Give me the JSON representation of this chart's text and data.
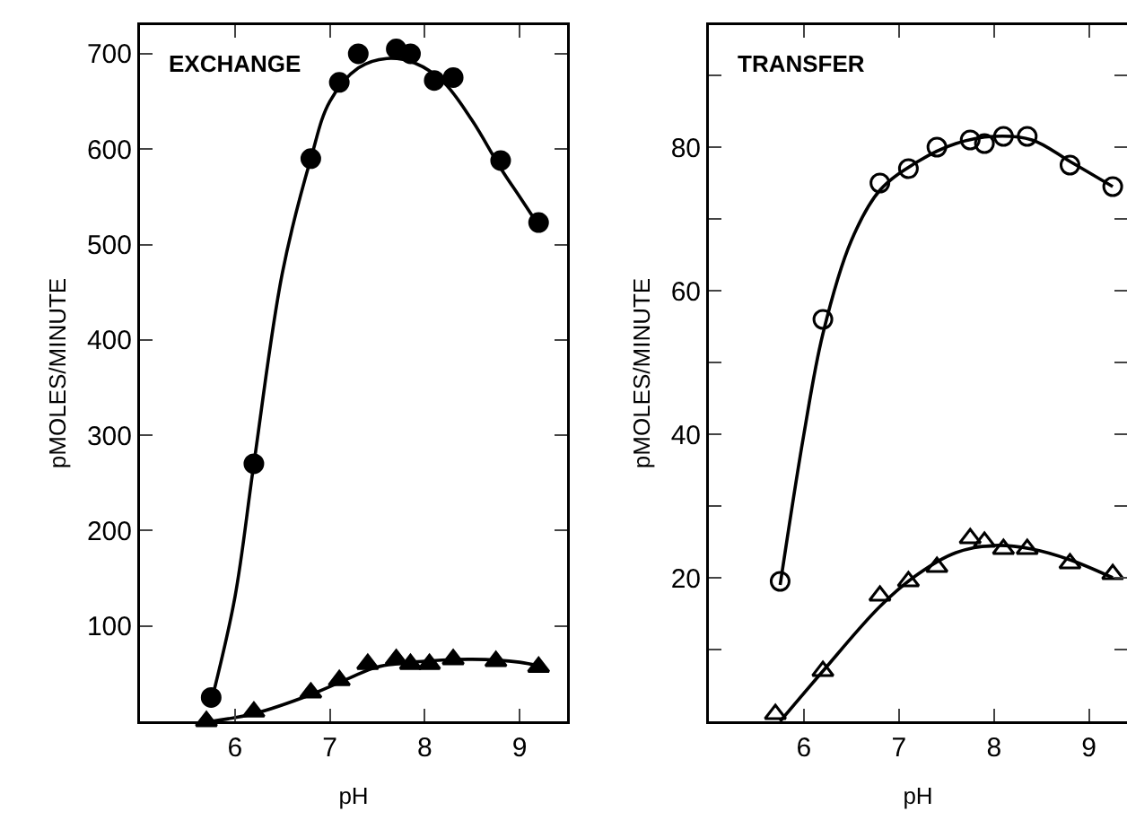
{
  "chart_data": [
    {
      "type": "scatter",
      "title": "EXCHANGE",
      "xlabel": "pH",
      "ylabel": "pMOLES/MINUTE",
      "xlim": [
        5,
        9.5
      ],
      "ylim": [
        0,
        730
      ],
      "xticks": [
        6,
        7,
        8,
        9
      ],
      "yticks": [
        100,
        200,
        300,
        400,
        500,
        600,
        700
      ],
      "series": [
        {
          "marker": "circle",
          "color": "#000000",
          "x": [
            5.75,
            6.2,
            6.8,
            7.1,
            7.3,
            7.7,
            7.85,
            8.1,
            8.3,
            8.8,
            9.2
          ],
          "values": [
            25,
            270,
            590,
            670,
            700,
            705,
            700,
            672,
            675,
            588,
            523
          ]
        },
        {
          "marker": "triangle",
          "color": "#000000",
          "x": [
            5.7,
            6.2,
            6.8,
            7.1,
            7.4,
            7.7,
            7.85,
            8.05,
            8.3,
            8.75,
            9.2
          ],
          "values": [
            0,
            10,
            30,
            43,
            60,
            65,
            60,
            60,
            65,
            63,
            57
          ]
        },
        {
          "type": "line",
          "marker": "none",
          "color": "#000000",
          "x": [
            5.75,
            6.0,
            6.2,
            6.5,
            6.8,
            7.0,
            7.3,
            7.6,
            7.9,
            8.2,
            8.5,
            8.8,
            9.0,
            9.2
          ],
          "values": [
            20,
            130,
            270,
            470,
            590,
            650,
            685,
            695,
            690,
            670,
            630,
            580,
            550,
            520
          ]
        },
        {
          "type": "line",
          "marker": "none",
          "color": "#000000",
          "x": [
            5.75,
            6.2,
            6.8,
            7.2,
            7.5,
            8.0,
            8.5,
            9.0,
            9.2
          ],
          "values": [
            0,
            8,
            28,
            45,
            57,
            63,
            65,
            62,
            58
          ]
        }
      ]
    },
    {
      "type": "scatter",
      "title": "TRANSFER",
      "xlabel": "pH",
      "ylabel": "pMOLES/MINUTE",
      "xlim": [
        5,
        9.4
      ],
      "ylim": [
        0,
        97
      ],
      "xticks": [
        6,
        7,
        8,
        9
      ],
      "yticks": [
        {
          "value": 10,
          "label": null
        },
        20,
        {
          "value": 30,
          "label": null
        },
        40,
        {
          "value": 50,
          "label": null
        },
        60,
        {
          "value": 70,
          "label": null
        },
        80,
        {
          "value": 90,
          "label": null
        }
      ],
      "series": [
        {
          "marker": "circle-open",
          "color": "#000000",
          "x": [
            5.75,
            6.2,
            6.8,
            7.1,
            7.4,
            7.75,
            7.9,
            8.1,
            8.35,
            8.8,
            9.25
          ],
          "values": [
            19.5,
            56,
            75,
            77,
            80,
            81,
            80.5,
            81.5,
            81.5,
            77.5,
            74.5
          ]
        },
        {
          "marker": "triangle-open",
          "color": "#000000",
          "x": [
            5.7,
            6.2,
            6.8,
            7.1,
            7.4,
            7.75,
            7.9,
            8.1,
            8.35,
            8.8,
            9.25
          ],
          "values": [
            1,
            7,
            17.5,
            19.5,
            21.5,
            25.5,
            25,
            24,
            24,
            22,
            20.5
          ]
        },
        {
          "type": "line",
          "marker": "none",
          "color": "#000000",
          "x": [
            5.75,
            6.0,
            6.2,
            6.5,
            6.8,
            7.2,
            7.6,
            8.0,
            8.4,
            8.8,
            9.25
          ],
          "values": [
            19,
            40,
            54,
            67,
            74,
            78,
            80.5,
            81.5,
            81,
            78,
            74.5
          ]
        },
        {
          "type": "line",
          "marker": "none",
          "color": "#000000",
          "x": [
            5.75,
            6.2,
            6.8,
            7.2,
            7.6,
            8.0,
            8.4,
            8.8,
            9.25
          ],
          "values": [
            0,
            7,
            16,
            20.5,
            23.5,
            24.5,
            24,
            22.5,
            20
          ]
        }
      ]
    }
  ]
}
